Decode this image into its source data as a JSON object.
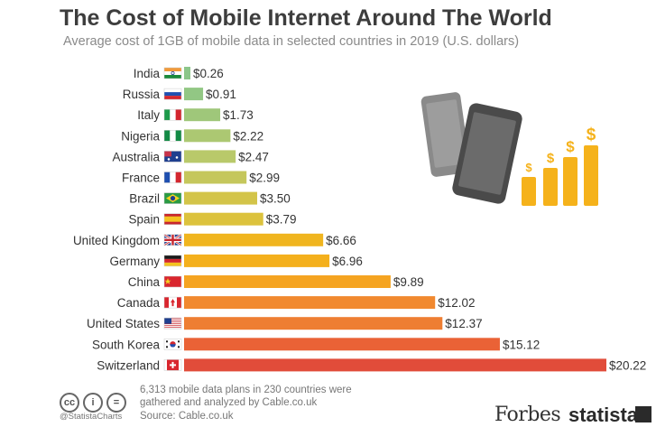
{
  "chart_data": {
    "type": "bar",
    "orientation": "horizontal",
    "title": "The Cost of Mobile Internet Around The World",
    "subtitle": "Average cost of 1GB of mobile data in selected countries in 2019 (U.S. dollars)",
    "categories": [
      "India",
      "Russia",
      "Italy",
      "Nigeria",
      "Australia",
      "France",
      "Brazil",
      "Spain",
      "United Kingdom",
      "Germany",
      "China",
      "Canada",
      "United States",
      "South Korea",
      "Switzerland"
    ],
    "values": [
      0.26,
      0.91,
      1.73,
      2.22,
      2.47,
      2.99,
      3.5,
      3.79,
      6.66,
      6.96,
      9.89,
      12.02,
      12.37,
      15.12,
      20.22
    ],
    "value_labels": [
      "$0.26",
      "$0.91",
      "$1.73",
      "$2.22",
      "$2.47",
      "$2.99",
      "$3.50",
      "$3.79",
      "$6.66",
      "$6.96",
      "$9.89",
      "$12.02",
      "$12.37",
      "$15.12",
      "$20.22"
    ],
    "bar_colors": [
      "#8cc68a",
      "#92c784",
      "#9fc77a",
      "#acc872",
      "#b9c96a",
      "#c5c75c",
      "#d3c449",
      "#dcc23d",
      "#f0b51f",
      "#f4b01c",
      "#f5a421",
      "#f1892f",
      "#ee7e32",
      "#ea6236",
      "#e14c3a"
    ],
    "xlim": [
      0,
      20.22
    ],
    "grid": false,
    "legend": "none"
  },
  "icons": {
    "flags": [
      "flag-india-icon",
      "flag-russia-icon",
      "flag-italy-icon",
      "flag-nigeria-icon",
      "flag-australia-icon",
      "flag-france-icon",
      "flag-brazil-icon",
      "flag-spain-icon",
      "flag-uk-icon",
      "flag-germany-icon",
      "flag-china-icon",
      "flag-canada-icon",
      "flag-usa-icon",
      "flag-south-korea-icon",
      "flag-switzerland-icon"
    ],
    "illustration": "phones-and-dollar-bars-icon",
    "accent": "#f5b21b"
  },
  "footer": {
    "note": "6,313 mobile data plans in 230 countries were gathered and analyzed by Cable.co.uk",
    "source": "Source: Cable.co.uk",
    "handle": "@StatistaCharts",
    "license_icons": [
      "cc",
      "i",
      "="
    ],
    "logo_forbes": "Forbes",
    "logo_statista": "statista"
  }
}
